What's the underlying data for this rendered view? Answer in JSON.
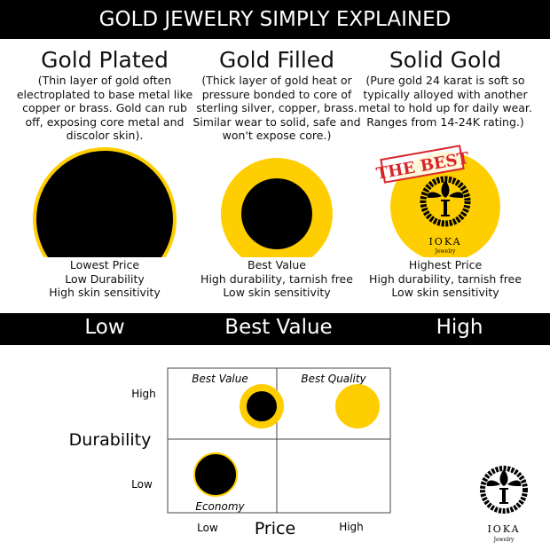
{
  "title": "GOLD JEWELRY SIMPLY EXPLAINED",
  "columns": [
    {
      "heading": "Gold Plated",
      "description": "(Thin layer of gold often electroplated to base metal like copper or brass. Gold can rub off, exposing core metal and discolor skin).",
      "captions": [
        "Lowest Price",
        "Low Durability",
        "High skin sensitivity"
      ]
    },
    {
      "heading": "Gold Filled",
      "description": "(Thick layer of gold heat or pressure bonded to core of sterling silver, copper, brass. Similar wear to solid, safe and won't expose core.)",
      "captions": [
        "Best Value",
        "High durability, tarnish free",
        "Low skin sensitivity"
      ]
    },
    {
      "heading": "Solid Gold",
      "description": "(Pure gold 24 karat is soft so typically alloyed with another metal to hold up for daily wear. Ranges from 14-24K rating.)",
      "captions": [
        "Highest Price",
        "High durability, tarnish free",
        "Low skin sensitivity"
      ],
      "stamp": "THE BEST"
    }
  ],
  "band": {
    "low": "Low",
    "mid": "Best Value",
    "high": "High"
  },
  "matrix": {
    "y_label": "Durability",
    "y_high": "High",
    "y_low": "Low",
    "x_label": "Price",
    "x_low": "Low",
    "x_high": "High",
    "quadrants": {
      "top_left": "Best Value",
      "top_right": "Best Quality",
      "bottom_left": "Economy"
    }
  },
  "logo": {
    "name": "IOKA",
    "sub": "Jewelry",
    "letter": "I"
  },
  "colors": {
    "gold": "#FFCE00",
    "black": "#000000"
  }
}
